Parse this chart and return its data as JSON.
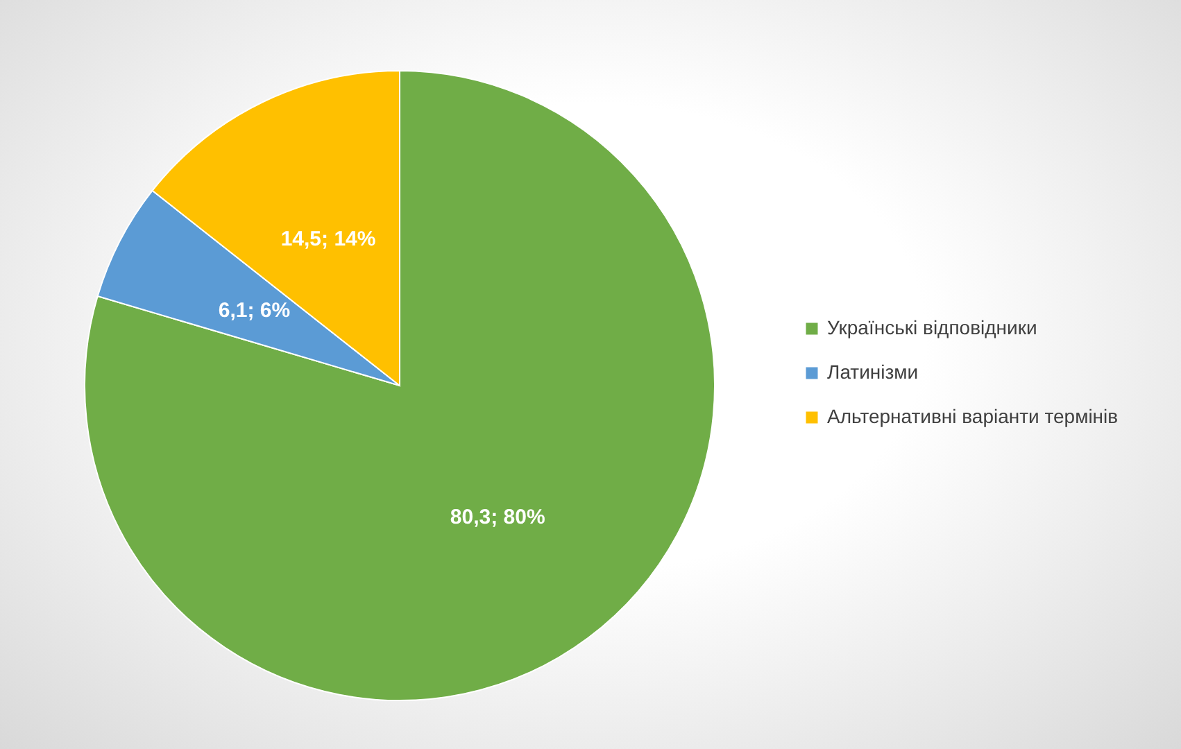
{
  "chart_data": {
    "type": "pie",
    "categories": [
      "Українські відповідники",
      "Латинізми",
      "Альтернативні варіанти термінів"
    ],
    "values": [
      80.3,
      6.1,
      14.5
    ],
    "colors": [
      "#70ad47",
      "#5b9bd5",
      "#ffc000"
    ],
    "value_labels": [
      "80,3; 80%",
      "6,1; 6%",
      "14,5; 14%"
    ],
    "legend": "right"
  }
}
